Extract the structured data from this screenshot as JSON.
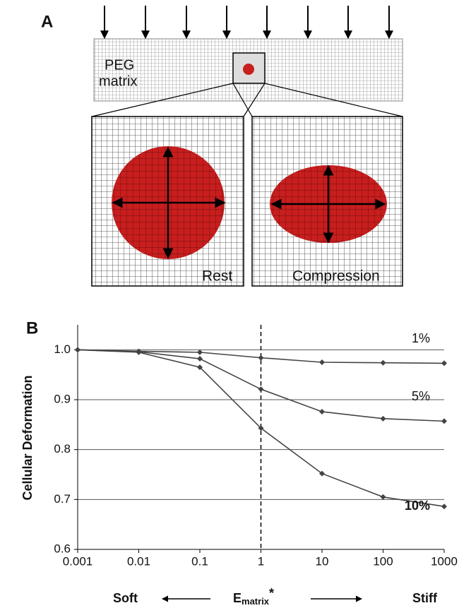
{
  "diagram": {
    "panel_label": "A",
    "matrix_label": [
      "PEG",
      "matrix"
    ],
    "rest_label": "Rest",
    "compression_label": "Compression"
  },
  "chart_data": {
    "type": "line",
    "panel_label": "B",
    "y_label": "Cellular Deformation",
    "x_label": {
      "base": "E",
      "subscript": "matrix",
      "suffix": "*"
    },
    "x_left_label": "Soft",
    "x_right_label": "Stiff",
    "x": [
      0.001,
      0.01,
      0.1,
      1,
      10,
      100,
      1000
    ],
    "log_x": true,
    "xlim": [
      0.001,
      1000
    ],
    "xticks": [
      0.001,
      0.01,
      0.1,
      1,
      10,
      100,
      1000
    ],
    "ylim": [
      0.6,
      1.05
    ],
    "yticks": [
      0.6,
      0.7,
      0.8,
      0.9,
      {
        "value": 1,
        "label": "1.0"
      }
    ],
    "grid": true,
    "vline_x": 1,
    "series": [
      {
        "name": "1%",
        "color": "#444444",
        "bold": false,
        "values": [
          1.0,
          0.997,
          0.995,
          0.984,
          0.975,
          0.974,
          0.973
        ]
      },
      {
        "name": "5%",
        "color": "#444444",
        "bold": false,
        "values": [
          1.0,
          0.996,
          0.982,
          0.921,
          0.876,
          0.862,
          0.857
        ]
      },
      {
        "name": "10%",
        "color": "#444444",
        "bold": true,
        "values": [
          1.0,
          0.995,
          0.965,
          0.843,
          0.752,
          0.705,
          0.686
        ]
      }
    ]
  }
}
